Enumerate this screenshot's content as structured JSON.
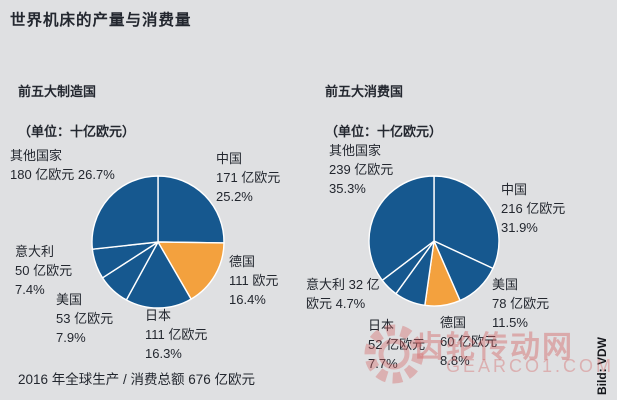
{
  "title": "世界机床的产量与消费量",
  "footnote": "2016 年全球生产 / 消费总额 676 亿欧元",
  "credit": "Bild: VDW",
  "watermark": {
    "line1": "齿轮传动网",
    "line2": "GEARCO1.COM"
  },
  "colors": {
    "background": "#dfe0e2",
    "text": "#23272f",
    "blue": "#16588f",
    "orange": "#f3a13e",
    "separator": "#ffffff",
    "watermark": "#d56060"
  },
  "chart_data": [
    {
      "type": "pie",
      "title": "前五大制造国",
      "subtitle": "（单位：十亿欧元）",
      "unit": "十亿欧元",
      "start": "12-oclock-clockwise",
      "slices": [
        {
          "name": "中国",
          "value_billion_eur": 17.1,
          "percent": 25.2,
          "color": "blue",
          "label_lines": [
            "中国",
            "171 亿欧元",
            "25.2%"
          ]
        },
        {
          "name": "德国",
          "value_billion_eur": 11.1,
          "percent": 16.4,
          "color": "orange",
          "label_lines": [
            "德国",
            "111 欧元",
            "16.4%"
          ]
        },
        {
          "name": "日本",
          "value_billion_eur": 11.1,
          "percent": 16.3,
          "color": "blue",
          "label_lines": [
            "日本",
            "111 亿欧元",
            "16.3%"
          ]
        },
        {
          "name": "美国",
          "value_billion_eur": 5.3,
          "percent": 7.9,
          "color": "blue",
          "label_lines": [
            "美国",
            "53 亿欧元",
            "7.9%"
          ]
        },
        {
          "name": "意大利",
          "value_billion_eur": 5.0,
          "percent": 7.4,
          "color": "blue",
          "label_lines": [
            "意大利",
            "50 亿欧元",
            "7.4%"
          ]
        },
        {
          "name": "其他国家",
          "value_billion_eur": 18.0,
          "percent": 26.7,
          "color": "blue",
          "label_lines": [
            "其他国家",
            "180 亿欧元 26.7%"
          ]
        }
      ]
    },
    {
      "type": "pie",
      "title": "前五大消费国",
      "subtitle": "（单位：十亿欧元）",
      "unit": "十亿欧元",
      "start": "12-oclock-clockwise",
      "slices": [
        {
          "name": "中国",
          "value_billion_eur": 21.6,
          "percent": 31.9,
          "color": "blue",
          "label_lines": [
            "中国",
            "216 亿欧元",
            "31.9%"
          ]
        },
        {
          "name": "美国",
          "value_billion_eur": 7.8,
          "percent": 11.5,
          "color": "blue",
          "label_lines": [
            "美国",
            "78 亿欧元",
            "11.5%"
          ]
        },
        {
          "name": "德国",
          "value_billion_eur": 6.0,
          "percent": 8.8,
          "color": "orange",
          "label_lines": [
            "德国",
            "60 亿欧元",
            "8.8%"
          ]
        },
        {
          "name": "日本",
          "value_billion_eur": 5.2,
          "percent": 7.7,
          "color": "blue",
          "label_lines": [
            "日本",
            "52 亿欧元",
            "7.7%"
          ]
        },
        {
          "name": "意大利",
          "value_billion_eur": 3.2,
          "percent": 4.7,
          "color": "blue",
          "label_lines": [
            "意大利 32 亿",
            "欧元 4.7%"
          ]
        },
        {
          "name": "其他国家",
          "value_billion_eur": 23.9,
          "percent": 35.3,
          "color": "blue",
          "label_lines": [
            "其他国家",
            "239 亿欧元",
            "35.3%"
          ]
        }
      ]
    }
  ]
}
